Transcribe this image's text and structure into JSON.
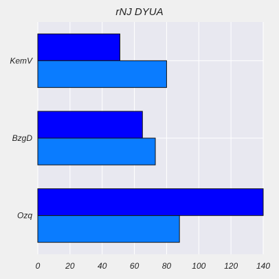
{
  "chart_data": {
    "type": "bar",
    "orientation": "horizontal",
    "title": "rNJ DYUA",
    "xlabel": "",
    "ylabel": "",
    "categories": [
      "Ozq",
      "BzgD",
      "KemV"
    ],
    "series": [
      {
        "values": [
          88,
          73,
          80
        ],
        "color": "#0a7cff"
      },
      {
        "values": [
          140,
          65,
          51
        ],
        "color": "#0000ff"
      }
    ],
    "xlim": [
      0,
      140
    ],
    "xticks": [
      0,
      20,
      40,
      60,
      80,
      100,
      120,
      140
    ],
    "grid": true,
    "legend": "none",
    "colors": {
      "background": "#f0f0f0",
      "plot_background": "#e8e8f0",
      "grid": "#ffffff",
      "bar_edge": "#111111"
    }
  }
}
